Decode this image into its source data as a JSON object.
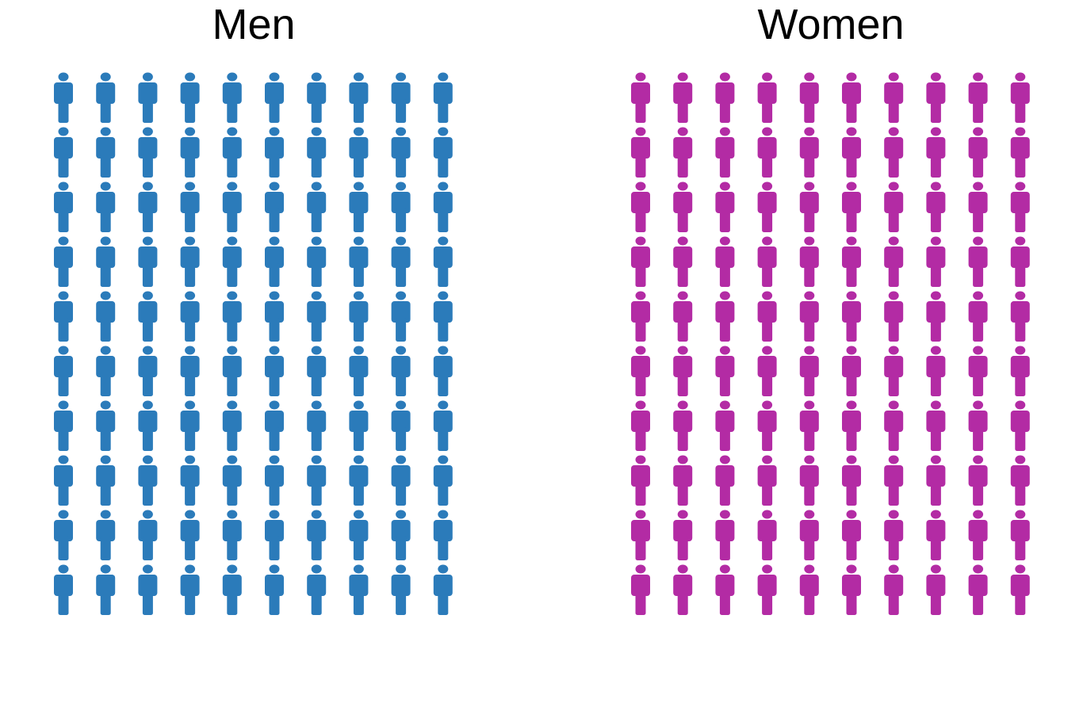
{
  "chart_data": [
    {
      "type": "pictogram",
      "title": "Men",
      "rows": 10,
      "columns": 10,
      "icon": "person-icon",
      "color": "#2b7bba",
      "value": 100,
      "filled": 100
    },
    {
      "type": "pictogram",
      "title": "Women",
      "rows": 10,
      "columns": 10,
      "icon": "person-icon",
      "color": "#b32ba4",
      "value": 100,
      "filled": 100
    }
  ]
}
